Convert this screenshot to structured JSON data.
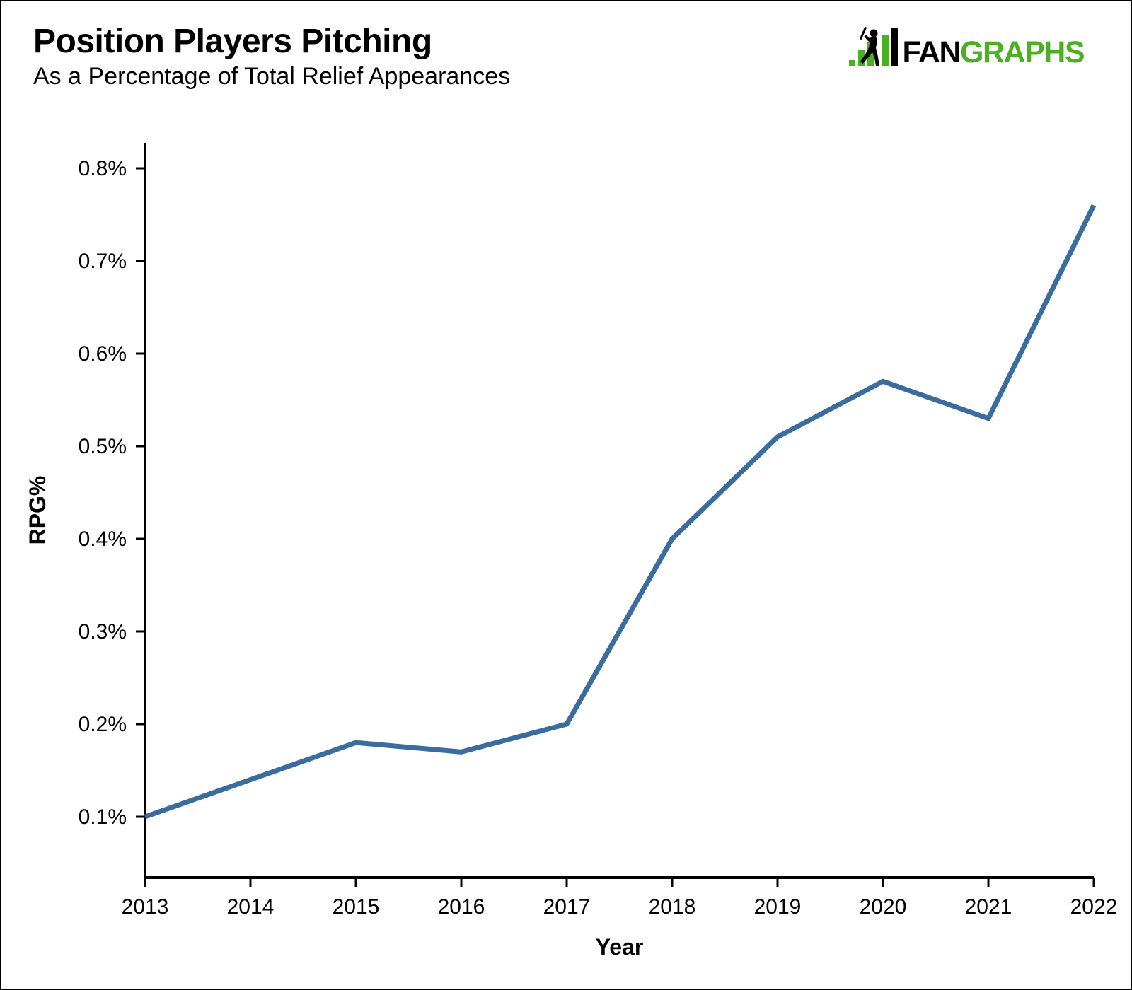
{
  "header": {
    "title": "Position Players Pitching",
    "subtitle": "As a Percentage of Total Relief Appearances"
  },
  "logo": {
    "fan": "FAN",
    "graphs": "GRAPHS",
    "black_color": "#000000",
    "green_color": "#4CB122"
  },
  "chart_data": {
    "type": "line",
    "title": "Position Players Pitching",
    "subtitle": "As a Percentage of Total Relief Appearances",
    "xlabel": "Year",
    "ylabel": "RPG%",
    "x": [
      "2013",
      "2014",
      "2015",
      "2016",
      "2017",
      "2018",
      "2019",
      "2020",
      "2021",
      "2022"
    ],
    "series": [
      {
        "name": "RPG%",
        "values_percent": [
          0.1,
          0.14,
          0.18,
          0.17,
          0.2,
          0.4,
          0.51,
          0.57,
          0.53,
          0.76
        ]
      }
    ],
    "yticks": [
      {
        "value": 0.1,
        "label": "0.1%"
      },
      {
        "value": 0.2,
        "label": "0.2%"
      },
      {
        "value": 0.3,
        "label": "0.3%"
      },
      {
        "value": 0.4,
        "label": "0.4%"
      },
      {
        "value": 0.5,
        "label": "0.5%"
      },
      {
        "value": 0.6,
        "label": "0.6%"
      },
      {
        "value": 0.7,
        "label": "0.7%"
      },
      {
        "value": 0.8,
        "label": "0.8%"
      }
    ],
    "ylim_percent": [
      0.035,
      0.828
    ],
    "grid": false,
    "legend": "none",
    "line_color": "#3A6C9E",
    "axis_color": "#000000",
    "background_color": "#FFFFFF"
  }
}
